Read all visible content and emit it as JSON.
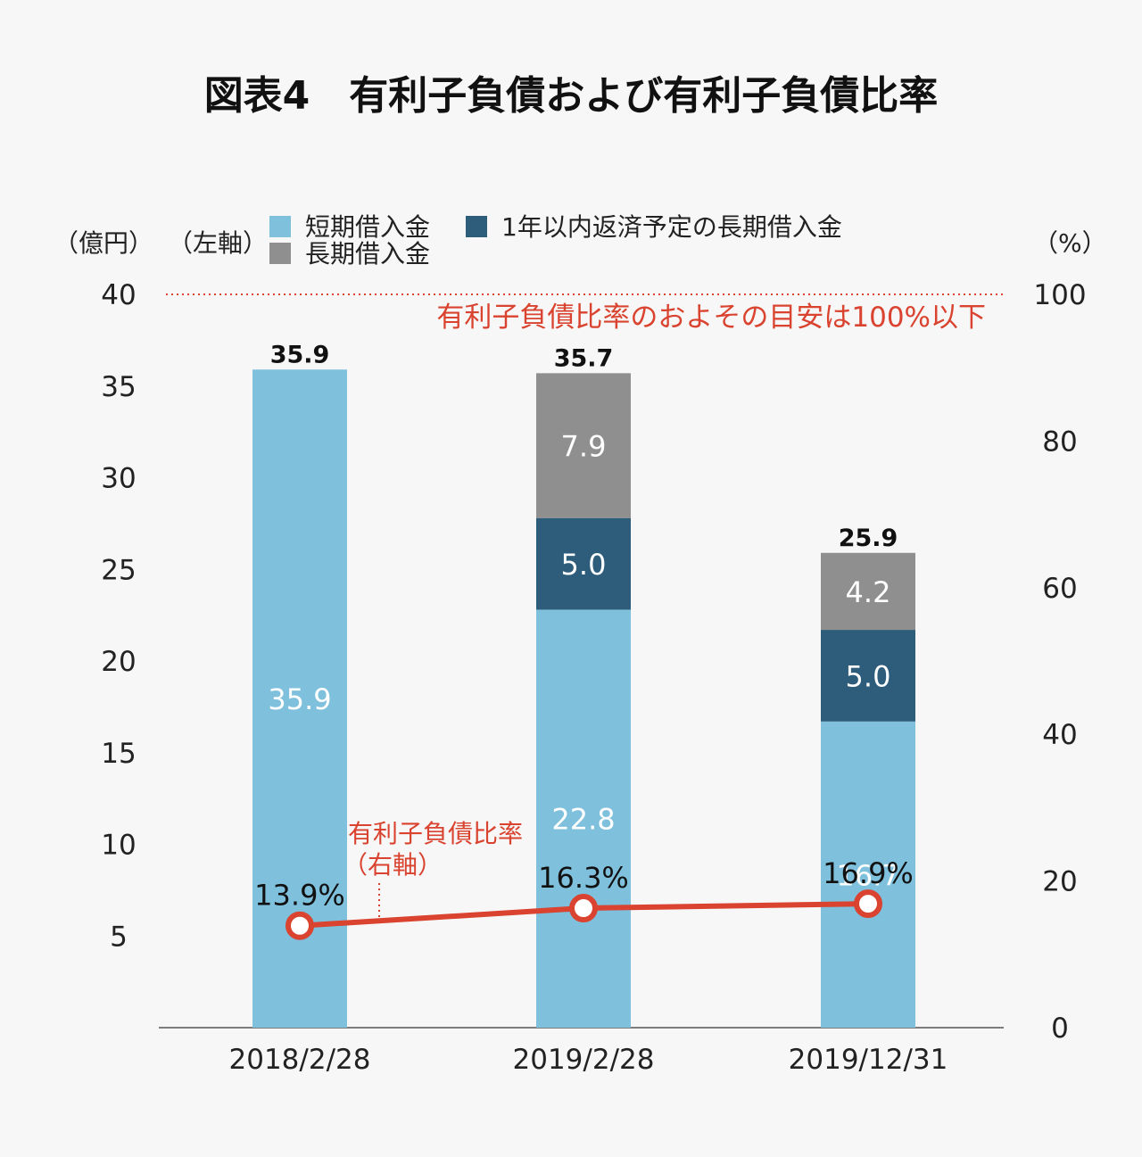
{
  "title": "図表4　有利子負債および有利子負債比率",
  "left_unit": "（億円）",
  "left_axis_label": "（左軸）",
  "right_unit": "（%）",
  "threshold_note": "有利子負債比率のおよその目安は100%以下",
  "ratio_series_label_line1": "有利子負債比率",
  "ratio_series_label_line2": "（右軸）",
  "colors": {
    "short_term": "#7fc0dd",
    "current_long_term": "#2d5d7b",
    "long_term": "#8f8f8f",
    "ratio_line": "#d9432f"
  },
  "chart_data": {
    "type": "bar",
    "stacked": true,
    "categories": [
      "2018/2/28",
      "2019/2/28",
      "2019/12/31"
    ],
    "series": [
      {
        "name": "短期借入金",
        "values": [
          35.9,
          22.8,
          16.7
        ]
      },
      {
        "name": "1年以内返済予定の長期借入金",
        "values": [
          null,
          5.0,
          5.0
        ]
      },
      {
        "name": "長期借入金",
        "values": [
          null,
          7.9,
          4.2
        ]
      }
    ],
    "totals": [
      "35.9",
      "35.7",
      "25.9"
    ],
    "segment_labels": [
      [
        "35.9",
        null,
        null
      ],
      [
        "22.8",
        "5.0",
        "7.9"
      ],
      [
        "16.7",
        "5.0",
        "4.2"
      ]
    ],
    "left_ticks": [
      "5",
      "10",
      "15",
      "20",
      "25",
      "30",
      "35",
      "40"
    ],
    "ylim_left": [
      0,
      40
    ],
    "line": {
      "name": "有利子負債比率",
      "axis": "right",
      "values": [
        13.9,
        16.3,
        16.9
      ],
      "labels": [
        "13.9%",
        "16.3%",
        "16.9%"
      ]
    },
    "right_ticks": [
      "0",
      "20",
      "40",
      "60",
      "80",
      "100"
    ],
    "ylim_right": [
      0,
      100
    ],
    "reference_line": {
      "axis": "right",
      "value": 100,
      "style": "dotted"
    },
    "legend": [
      {
        "name": "短期借入金",
        "color": "#7fc0dd"
      },
      {
        "name": "1年以内返済予定の長期借入金",
        "color": "#2d5d7b"
      },
      {
        "name": "長期借入金",
        "color": "#8f8f8f"
      }
    ]
  }
}
